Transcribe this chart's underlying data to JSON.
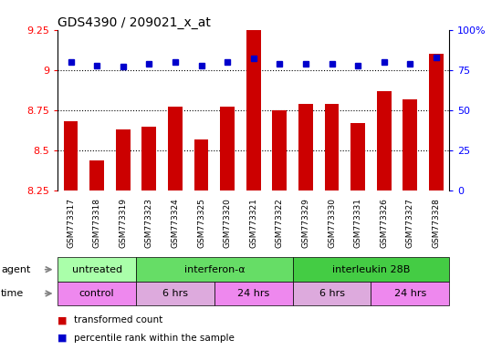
{
  "title": "GDS4390 / 209021_x_at",
  "samples": [
    "GSM773317",
    "GSM773318",
    "GSM773319",
    "GSM773323",
    "GSM773324",
    "GSM773325",
    "GSM773320",
    "GSM773321",
    "GSM773322",
    "GSM773329",
    "GSM773330",
    "GSM773331",
    "GSM773326",
    "GSM773327",
    "GSM773328"
  ],
  "bar_values": [
    8.68,
    8.44,
    8.63,
    8.65,
    8.77,
    8.57,
    8.77,
    9.25,
    8.75,
    8.79,
    8.79,
    8.67,
    8.87,
    8.82,
    9.1
  ],
  "dot_values": [
    9.05,
    9.03,
    9.02,
    9.04,
    9.05,
    9.03,
    9.05,
    9.07,
    9.04,
    9.04,
    9.04,
    9.03,
    9.05,
    9.04,
    9.08
  ],
  "bar_color": "#CC0000",
  "dot_color": "#0000CC",
  "ylim_left": [
    8.25,
    9.25
  ],
  "ylim_right": [
    0,
    100
  ],
  "yticks_left": [
    8.25,
    8.5,
    8.75,
    9.0,
    9.25
  ],
  "yticks_right": [
    0,
    25,
    50,
    75,
    100
  ],
  "ytick_labels_left": [
    "8.25",
    "8.5",
    "8.75",
    "9",
    "9.25"
  ],
  "ytick_labels_right": [
    "0",
    "25",
    "50",
    "75",
    "100%"
  ],
  "hlines": [
    8.5,
    8.75,
    9.0
  ],
  "agent_groups": [
    {
      "label": "untreated",
      "start": 0,
      "end": 3,
      "color": "#aaffaa"
    },
    {
      "label": "interferon-α",
      "start": 3,
      "end": 9,
      "color": "#66dd66"
    },
    {
      "label": "interleukin 28B",
      "start": 9,
      "end": 15,
      "color": "#44cc44"
    }
  ],
  "time_groups": [
    {
      "label": "control",
      "start": 0,
      "end": 3,
      "color": "#ee88ee"
    },
    {
      "label": "6 hrs",
      "start": 3,
      "end": 6,
      "color": "#ddaadd"
    },
    {
      "label": "24 hrs",
      "start": 6,
      "end": 9,
      "color": "#ee88ee"
    },
    {
      "label": "6 hrs",
      "start": 9,
      "end": 12,
      "color": "#ddaadd"
    },
    {
      "label": "24 hrs",
      "start": 12,
      "end": 15,
      "color": "#ee88ee"
    }
  ],
  "legend_bar_label": "transformed count",
  "legend_dot_label": "percentile rank within the sample"
}
